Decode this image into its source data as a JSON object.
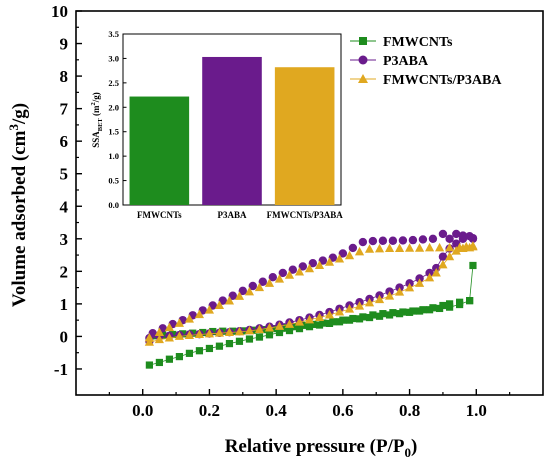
{
  "chart_data": [
    {
      "type": "scatter",
      "xlabel": "Relative pressure (P/P",
      "xlabel_sub": "0",
      "xlabel_end": ")",
      "ylabel": "Volume adsorbed (cm",
      "ylabel_sup": "3",
      "ylabel_end": "/g)",
      "xlim": [
        -0.2,
        1.2
      ],
      "ylim": [
        -1.8,
        10
      ],
      "xticks": [
        "0.0",
        "0.2",
        "0.4",
        "0.6",
        "0.8",
        "1.0"
      ],
      "yticks": [
        "-1",
        "0",
        "1",
        "2",
        "3",
        "4",
        "5",
        "6",
        "7",
        "8",
        "9",
        "10"
      ],
      "legend_position": "top-right",
      "series": [
        {
          "name": "FMWCNTs",
          "color": "#1e8c1e",
          "marker": "square",
          "adsorption": [
            [
              0.02,
              -0.88
            ],
            [
              0.05,
              -0.8
            ],
            [
              0.08,
              -0.7
            ],
            [
              0.11,
              -0.62
            ],
            [
              0.14,
              -0.52
            ],
            [
              0.17,
              -0.44
            ],
            [
              0.2,
              -0.37
            ],
            [
              0.23,
              -0.3
            ],
            [
              0.26,
              -0.22
            ],
            [
              0.29,
              -0.15
            ],
            [
              0.32,
              -0.08
            ],
            [
              0.35,
              -0.02
            ],
            [
              0.38,
              0.05
            ],
            [
              0.41,
              0.12
            ],
            [
              0.44,
              0.18
            ],
            [
              0.47,
              0.24
            ],
            [
              0.5,
              0.3
            ],
            [
              0.53,
              0.35
            ],
            [
              0.56,
              0.4
            ],
            [
              0.59,
              0.45
            ],
            [
              0.62,
              0.5
            ],
            [
              0.65,
              0.54
            ],
            [
              0.68,
              0.58
            ],
            [
              0.71,
              0.62
            ],
            [
              0.74,
              0.66
            ],
            [
              0.77,
              0.7
            ],
            [
              0.8,
              0.74
            ],
            [
              0.83,
              0.78
            ],
            [
              0.86,
              0.82
            ],
            [
              0.89,
              0.86
            ],
            [
              0.92,
              0.9
            ],
            [
              0.95,
              0.98
            ],
            [
              0.98,
              1.1
            ],
            [
              0.99,
              2.18
            ]
          ],
          "desorption": [
            [
              0.98,
              1.1
            ],
            [
              0.95,
              1.05
            ],
            [
              0.92,
              1.0
            ],
            [
              0.9,
              0.95
            ],
            [
              0.87,
              0.88
            ],
            [
              0.84,
              0.82
            ],
            [
              0.81,
              0.78
            ],
            [
              0.78,
              0.75
            ],
            [
              0.75,
              0.73
            ],
            [
              0.72,
              0.7
            ],
            [
              0.69,
              0.66
            ],
            [
              0.66,
              0.6
            ],
            [
              0.63,
              0.55
            ],
            [
              0.6,
              0.5
            ],
            [
              0.57,
              0.45
            ],
            [
              0.54,
              0.41
            ],
            [
              0.51,
              0.37
            ],
            [
              0.48,
              0.34
            ],
            [
              0.45,
              0.3
            ],
            [
              0.42,
              0.27
            ],
            [
              0.39,
              0.24
            ],
            [
              0.36,
              0.21
            ],
            [
              0.33,
              0.19
            ],
            [
              0.3,
              0.17
            ],
            [
              0.27,
              0.16
            ],
            [
              0.24,
              0.16
            ],
            [
              0.21,
              0.15
            ],
            [
              0.18,
              0.12
            ],
            [
              0.15,
              0.1
            ],
            [
              0.12,
              0.08
            ],
            [
              0.09,
              0.06
            ],
            [
              0.06,
              0.04
            ],
            [
              0.03,
              0.02
            ]
          ]
        },
        {
          "name": "P3ABA",
          "color": "#6a1b8c",
          "marker": "circle",
          "adsorption": [
            [
              0.02,
              -0.05
            ],
            [
              0.05,
              0.0
            ],
            [
              0.08,
              0.02
            ],
            [
              0.11,
              0.04
            ],
            [
              0.14,
              0.06
            ],
            [
              0.17,
              0.07
            ],
            [
              0.2,
              0.09
            ],
            [
              0.23,
              0.11
            ],
            [
              0.26,
              0.13
            ],
            [
              0.29,
              0.16
            ],
            [
              0.32,
              0.2
            ],
            [
              0.35,
              0.25
            ],
            [
              0.38,
              0.3
            ],
            [
              0.41,
              0.36
            ],
            [
              0.44,
              0.43
            ],
            [
              0.47,
              0.5
            ],
            [
              0.5,
              0.58
            ],
            [
              0.53,
              0.66
            ],
            [
              0.56,
              0.75
            ],
            [
              0.59,
              0.85
            ],
            [
              0.62,
              0.95
            ],
            [
              0.65,
              1.05
            ],
            [
              0.68,
              1.15
            ],
            [
              0.71,
              1.26
            ],
            [
              0.74,
              1.38
            ],
            [
              0.77,
              1.5
            ],
            [
              0.8,
              1.63
            ],
            [
              0.83,
              1.78
            ],
            [
              0.86,
              1.95
            ],
            [
              0.88,
              2.1
            ],
            [
              0.9,
              2.45
            ],
            [
              0.92,
              2.7
            ],
            [
              0.94,
              2.85
            ],
            [
              0.96,
              3.0
            ],
            [
              0.98,
              3.08
            ],
            [
              0.99,
              3.0
            ]
          ],
          "desorption": [
            [
              0.99,
              3.02
            ],
            [
              0.96,
              3.1
            ],
            [
              0.94,
              3.15
            ],
            [
              0.92,
              3.0
            ],
            [
              0.9,
              3.15
            ],
            [
              0.87,
              3.0
            ],
            [
              0.84,
              2.98
            ],
            [
              0.81,
              2.96
            ],
            [
              0.78,
              2.95
            ],
            [
              0.75,
              2.94
            ],
            [
              0.72,
              2.94
            ],
            [
              0.69,
              2.93
            ],
            [
              0.66,
              2.9
            ],
            [
              0.63,
              2.72
            ],
            [
              0.6,
              2.55
            ],
            [
              0.57,
              2.42
            ],
            [
              0.54,
              2.33
            ],
            [
              0.51,
              2.25
            ],
            [
              0.48,
              2.15
            ],
            [
              0.45,
              2.05
            ],
            [
              0.42,
              1.95
            ],
            [
              0.39,
              1.82
            ],
            [
              0.36,
              1.68
            ],
            [
              0.33,
              1.55
            ],
            [
              0.3,
              1.4
            ],
            [
              0.27,
              1.25
            ],
            [
              0.24,
              1.1
            ],
            [
              0.21,
              0.95
            ],
            [
              0.18,
              0.8
            ],
            [
              0.15,
              0.65
            ],
            [
              0.12,
              0.5
            ],
            [
              0.09,
              0.38
            ],
            [
              0.06,
              0.25
            ],
            [
              0.03,
              0.1
            ],
            [
              0.02,
              -0.15
            ]
          ]
        },
        {
          "name": "FMWCNTs/P3ABA",
          "color": "#e0a820",
          "marker": "triangle",
          "adsorption": [
            [
              0.02,
              -0.18
            ],
            [
              0.05,
              -0.1
            ],
            [
              0.08,
              -0.05
            ],
            [
              0.11,
              0.0
            ],
            [
              0.14,
              0.03
            ],
            [
              0.17,
              0.06
            ],
            [
              0.2,
              0.08
            ],
            [
              0.23,
              0.1
            ],
            [
              0.26,
              0.12
            ],
            [
              0.29,
              0.14
            ],
            [
              0.32,
              0.17
            ],
            [
              0.35,
              0.21
            ],
            [
              0.38,
              0.26
            ],
            [
              0.41,
              0.31
            ],
            [
              0.44,
              0.37
            ],
            [
              0.47,
              0.44
            ],
            [
              0.5,
              0.51
            ],
            [
              0.53,
              0.58
            ],
            [
              0.56,
              0.66
            ],
            [
              0.59,
              0.75
            ],
            [
              0.62,
              0.84
            ],
            [
              0.65,
              0.93
            ],
            [
              0.68,
              1.03
            ],
            [
              0.71,
              1.13
            ],
            [
              0.74,
              1.24
            ],
            [
              0.77,
              1.36
            ],
            [
              0.8,
              1.49
            ],
            [
              0.83,
              1.63
            ],
            [
              0.86,
              1.8
            ],
            [
              0.88,
              1.95
            ],
            [
              0.9,
              2.2
            ],
            [
              0.92,
              2.45
            ],
            [
              0.94,
              2.62
            ],
            [
              0.96,
              2.7
            ],
            [
              0.98,
              2.72
            ],
            [
              0.99,
              2.75
            ]
          ],
          "desorption": [
            [
              0.99,
              2.78
            ],
            [
              0.97,
              2.75
            ],
            [
              0.95,
              2.72
            ],
            [
              0.92,
              2.72
            ],
            [
              0.89,
              2.72
            ],
            [
              0.86,
              2.72
            ],
            [
              0.83,
              2.71
            ],
            [
              0.8,
              2.71
            ],
            [
              0.77,
              2.7
            ],
            [
              0.74,
              2.7
            ],
            [
              0.71,
              2.69
            ],
            [
              0.68,
              2.68
            ],
            [
              0.65,
              2.6
            ],
            [
              0.62,
              2.48
            ],
            [
              0.59,
              2.38
            ],
            [
              0.56,
              2.28
            ],
            [
              0.53,
              2.18
            ],
            [
              0.5,
              2.08
            ],
            [
              0.47,
              1.98
            ],
            [
              0.44,
              1.88
            ],
            [
              0.41,
              1.76
            ],
            [
              0.38,
              1.63
            ],
            [
              0.35,
              1.5
            ],
            [
              0.32,
              1.37
            ],
            [
              0.29,
              1.23
            ],
            [
              0.26,
              1.09
            ],
            [
              0.23,
              0.95
            ],
            [
              0.2,
              0.81
            ],
            [
              0.17,
              0.67
            ],
            [
              0.14,
              0.53
            ],
            [
              0.11,
              0.4
            ],
            [
              0.08,
              0.27
            ],
            [
              0.05,
              0.12
            ],
            [
              0.02,
              -0.05
            ]
          ]
        }
      ]
    },
    {
      "type": "bar",
      "ylabel_prefix": "SSA",
      "ylabel_sub": "BET",
      "ylabel_mid": " (m",
      "ylabel_sup": "2",
      "ylabel_end": "/g)",
      "ylim": [
        0,
        3.5
      ],
      "yticks": [
        "0.0",
        "0.5",
        "1.0",
        "1.5",
        "2.0",
        "2.5",
        "3.0",
        "3.5"
      ],
      "categories": [
        "FMWCNTs",
        "P3ABA",
        "FMWCNTs/P3ABA"
      ],
      "values": [
        2.22,
        3.03,
        2.82
      ],
      "colors": [
        "#1e8c1e",
        "#6a1b8c",
        "#e0a820"
      ]
    }
  ]
}
